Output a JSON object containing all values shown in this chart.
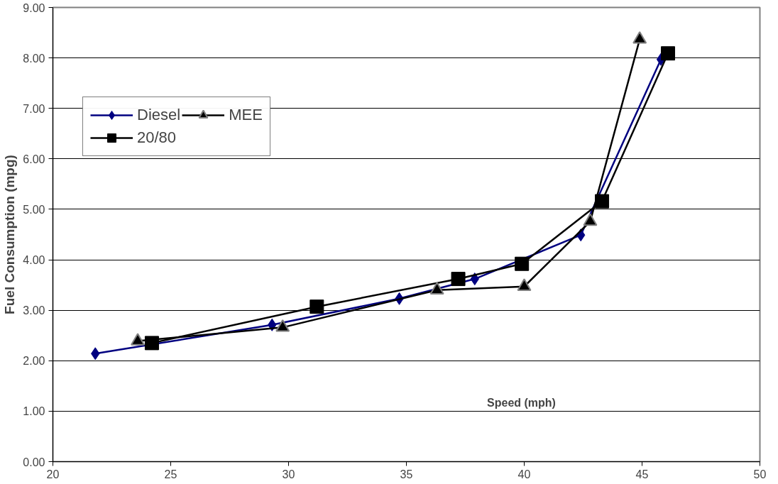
{
  "chart_data": {
    "type": "line",
    "xlabel": "Speed (mph)",
    "ylabel": "Fuel Consumption (mpg)",
    "series": [
      {
        "name": "Diesel",
        "color": "#000080",
        "marker": "diamond",
        "x": [
          21.8,
          29.3,
          34.7,
          37.9,
          42.4,
          45.8
        ],
        "values": [
          2.14,
          2.71,
          3.23,
          3.62,
          4.49,
          7.97
        ]
      },
      {
        "name": "20/80",
        "color": "#000000",
        "marker": "square",
        "x": [
          24.2,
          31.2,
          37.2,
          39.9,
          43.3,
          46.1
        ],
        "values": [
          2.35,
          3.07,
          3.62,
          3.92,
          5.16,
          8.09
        ]
      },
      {
        "name": "MEE",
        "color": "#000000",
        "marker": "triangle",
        "x": [
          23.6,
          29.75,
          36.3,
          40.0,
          42.8,
          44.9
        ],
        "values": [
          2.39,
          2.66,
          3.4,
          3.47,
          4.76,
          8.37
        ]
      }
    ],
    "xlim": [
      20,
      50
    ],
    "xticks": [
      20,
      25,
      30,
      35,
      40,
      45,
      50
    ],
    "ylim": [
      0,
      9
    ],
    "yticks": [
      {
        "value": 0,
        "label": "0.00"
      },
      {
        "value": 1,
        "label": "1.00"
      },
      {
        "value": 2,
        "label": "2.00"
      },
      {
        "value": 3,
        "label": "3.00"
      },
      {
        "value": 4,
        "label": "4.00"
      },
      {
        "value": 5,
        "label": "5.00"
      },
      {
        "value": 6,
        "label": "6.00"
      },
      {
        "value": 7,
        "label": "7.00"
      },
      {
        "value": 8,
        "label": "8.00"
      },
      {
        "value": 9,
        "label": "9.00"
      }
    ],
    "grid": "y",
    "legend": "top left",
    "line_style": "solid"
  }
}
